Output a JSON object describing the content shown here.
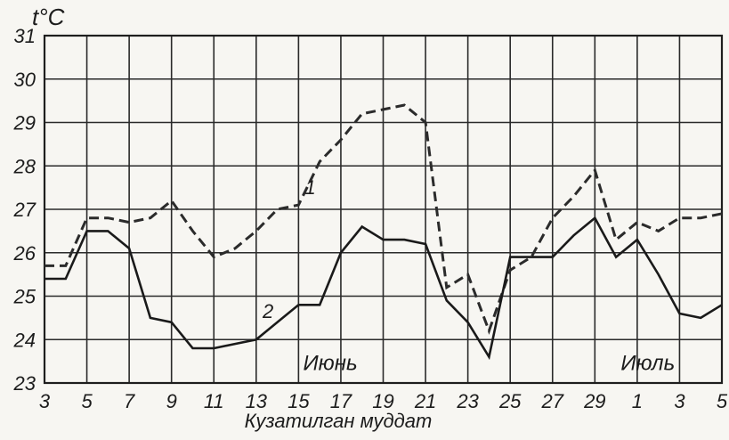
{
  "chart_data": {
    "type": "line",
    "ylabel": "t°C",
    "xlabel": "Кузатилган муддат",
    "ylim": [
      23,
      31
    ],
    "yticks": [
      "23",
      "24",
      "25",
      "26",
      "27",
      "28",
      "29",
      "30",
      "31"
    ],
    "xticks": [
      "3",
      "5",
      "7",
      "9",
      "11",
      "13",
      "15",
      "17",
      "19",
      "21",
      "23",
      "25",
      "27",
      "29",
      "1",
      "3",
      "5"
    ],
    "grid": true,
    "annotations": [
      {
        "text": "Июнь",
        "x": 16.5
      },
      {
        "text": "Июль",
        "x": 31.5
      }
    ],
    "series": [
      {
        "name": "1",
        "x": [
          3,
          4,
          5,
          6,
          7,
          8,
          9,
          10,
          11,
          12,
          13,
          14,
          15,
          16,
          17,
          18,
          19,
          20,
          21,
          22,
          23,
          24,
          25,
          26,
          27,
          28,
          29,
          30,
          31,
          32,
          33,
          34,
          35
        ],
        "values": [
          25.7,
          25.7,
          26.8,
          26.8,
          26.7,
          26.8,
          27.2,
          26.5,
          25.9,
          26.1,
          26.5,
          27.0,
          27.1,
          28.1,
          28.6,
          29.2,
          29.3,
          29.4,
          29.0,
          25.2,
          25.5,
          24.2,
          25.6,
          25.9,
          26.8,
          27.3,
          27.9,
          26.3,
          26.7,
          26.5,
          26.8,
          26.8,
          26.9
        ]
      },
      {
        "name": "2",
        "x": [
          3,
          4,
          5,
          6,
          7,
          8,
          9,
          10,
          11,
          12,
          13,
          14,
          15,
          16,
          17,
          18,
          19,
          20,
          21,
          22,
          23,
          24,
          25,
          26,
          27,
          28,
          29,
          30,
          31,
          32,
          33,
          34,
          35
        ],
        "values": [
          25.4,
          25.4,
          26.5,
          26.5,
          26.1,
          24.5,
          24.4,
          23.8,
          23.8,
          23.9,
          24.0,
          24.4,
          24.8,
          24.8,
          26.0,
          26.6,
          26.3,
          26.3,
          26.2,
          24.9,
          24.4,
          23.6,
          25.9,
          25.9,
          25.9,
          26.4,
          26.8,
          25.9,
          26.3,
          25.5,
          24.6,
          24.5,
          24.8
        ]
      }
    ]
  }
}
